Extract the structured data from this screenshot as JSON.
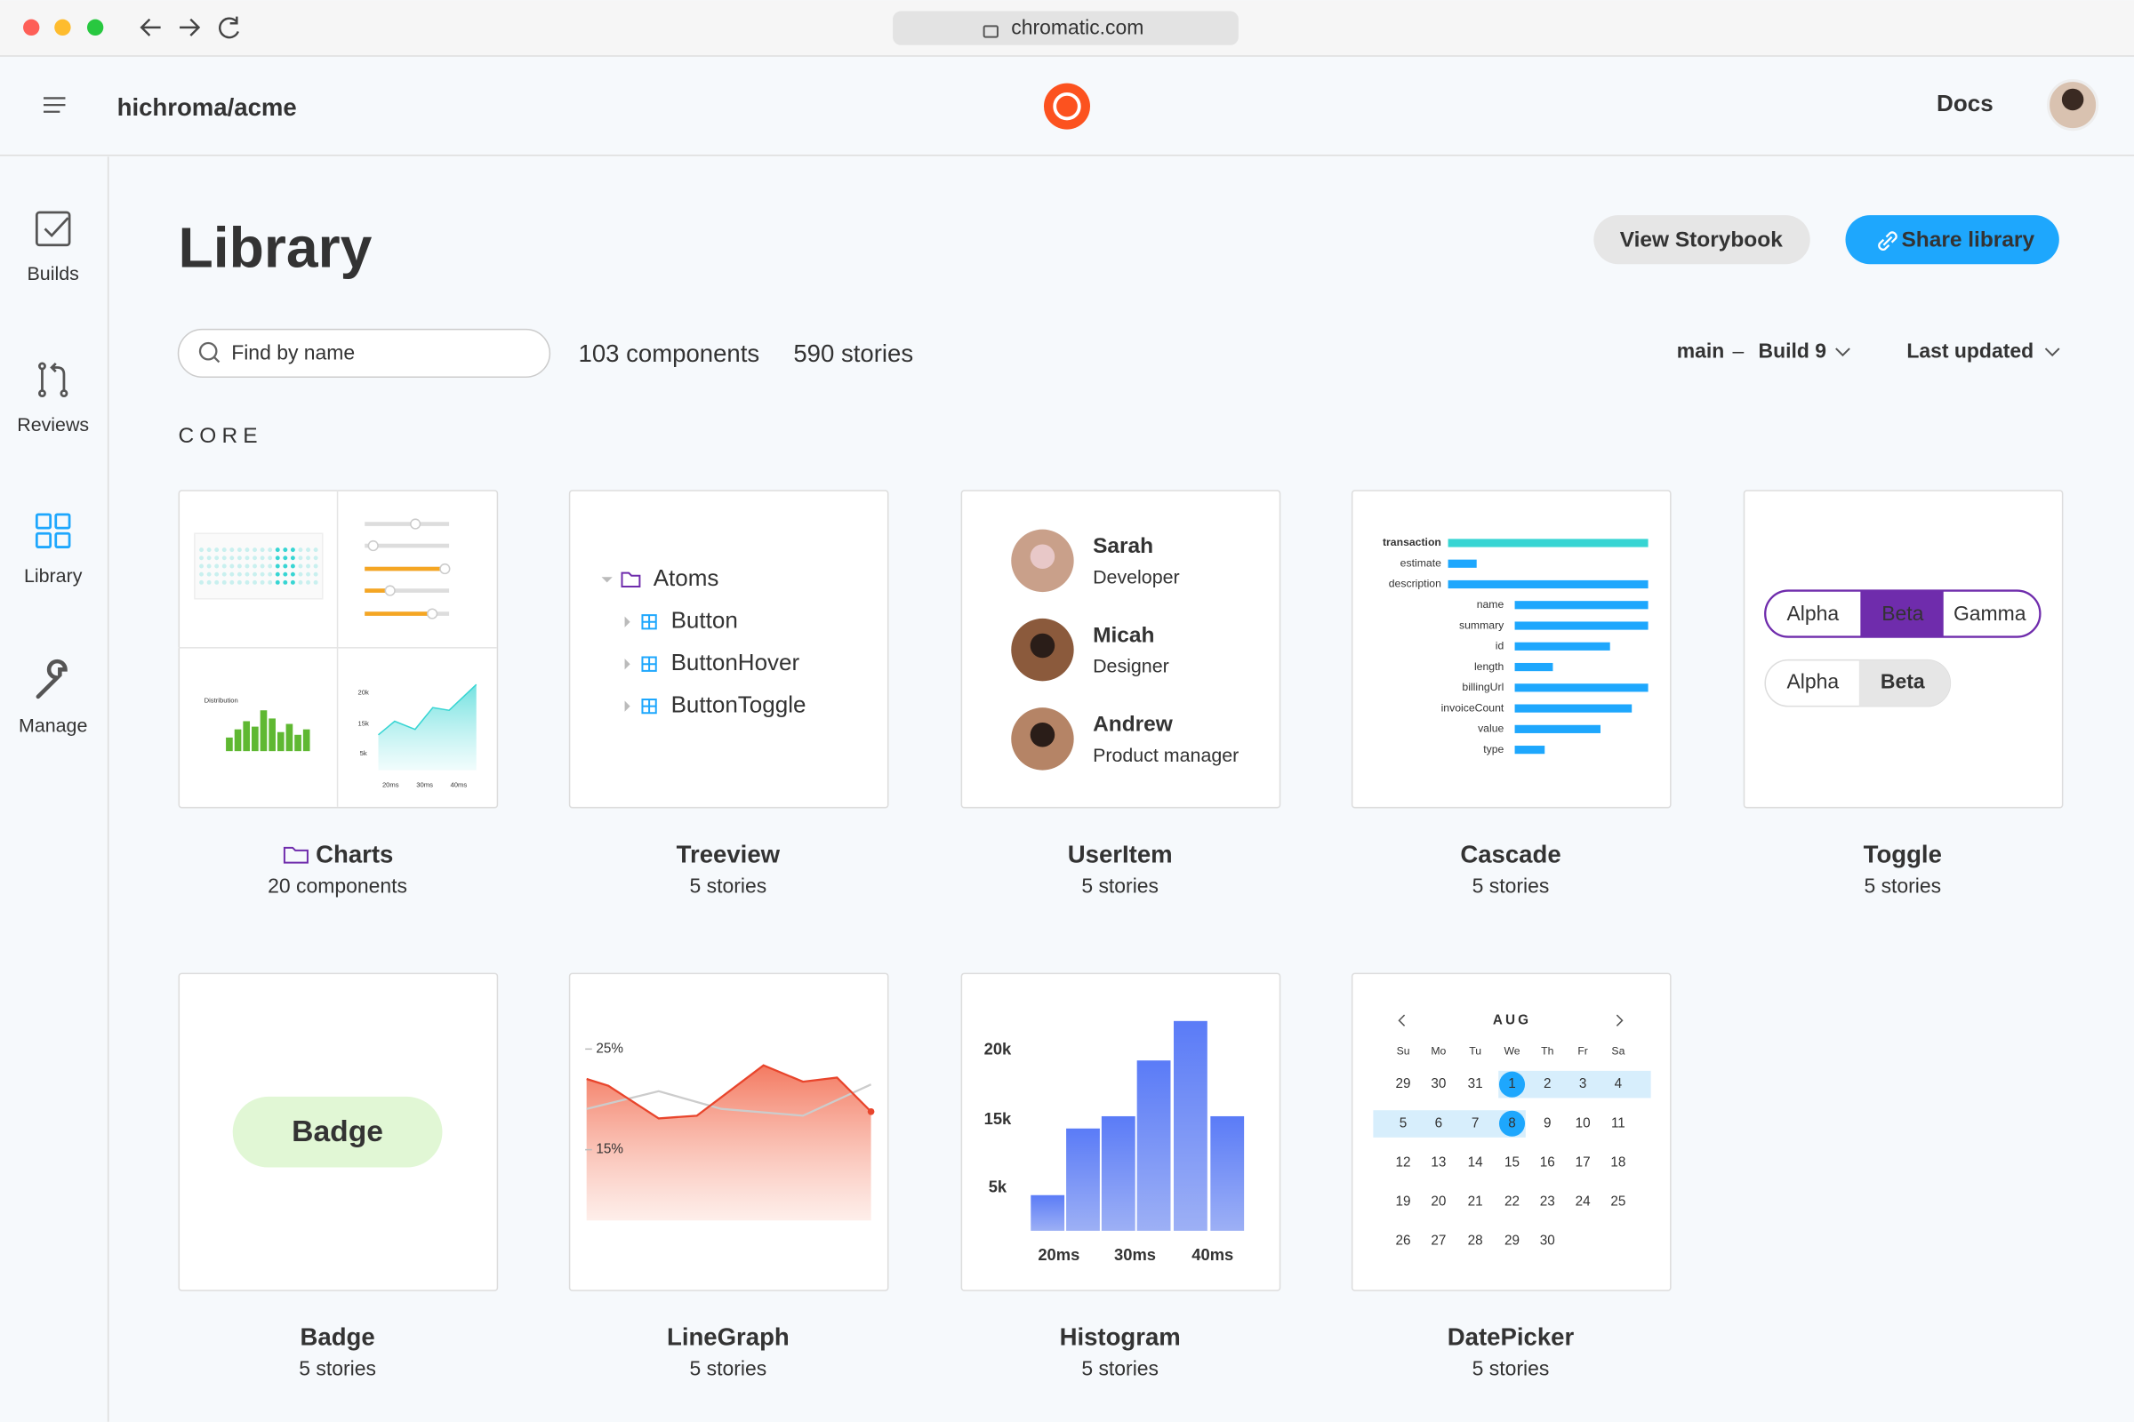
{
  "browser": {
    "url": "chromatic.com"
  },
  "header": {
    "project": "hichroma/acme",
    "docs": "Docs"
  },
  "sidebar": [
    {
      "label": "Builds",
      "active": false
    },
    {
      "label": "Reviews",
      "active": false
    },
    {
      "label": "Library",
      "active": true
    },
    {
      "label": "Manage",
      "active": false
    }
  ],
  "page": {
    "title": "Library",
    "view_button": "View Storybook",
    "share_button": "Share library",
    "search_placeholder": "Find by name",
    "component_count": "103 components",
    "story_count": "590 stories",
    "branch": "main",
    "separator": "–",
    "build": "Build 9",
    "sort": "Last updated",
    "section": "CORE"
  },
  "cards": [
    {
      "name": "Charts",
      "meta": "20 components",
      "content": {
        "title": "Distribution",
        "yticks": [
          "20k",
          "15k",
          "5k"
        ],
        "xticks": [
          "20ms",
          "30ms",
          "40ms"
        ]
      }
    },
    {
      "name": "Treeview",
      "meta": "5 stories",
      "content": [
        "Atoms",
        "Button",
        "ButtonHover",
        "ButtonToggle"
      ]
    },
    {
      "name": "UserItem",
      "meta": "5 stories",
      "content": [
        {
          "name": "Sarah",
          "role": "Developer"
        },
        {
          "name": "Micah",
          "role": "Designer"
        },
        {
          "name": "Andrew",
          "role": "Product manager"
        }
      ]
    },
    {
      "name": "Cascade",
      "meta": "5 stories",
      "content": [
        "transaction",
        "estimate",
        "description",
        "name",
        "summary",
        "id",
        "length",
        "billingUrl",
        "invoiceCount",
        "value",
        "type"
      ]
    },
    {
      "name": "Toggle",
      "meta": "5 stories",
      "content": [
        [
          "Alpha",
          "Beta",
          "Gamma"
        ],
        [
          "Alpha",
          "Beta"
        ]
      ]
    },
    {
      "name": "Badge",
      "meta": "5 stories",
      "content": "Badge"
    },
    {
      "name": "LineGraph",
      "meta": "5 stories",
      "content": [
        "25%",
        "15%"
      ]
    },
    {
      "name": "Histogram",
      "meta": "5 stories",
      "content": {
        "yticks": [
          "20k",
          "15k",
          "5k"
        ],
        "xticks": [
          "20ms",
          "30ms",
          "40ms"
        ]
      }
    },
    {
      "name": "DatePicker",
      "meta": "5 stories",
      "content": {
        "month": "AUG",
        "weekdays": [
          "Su",
          "Mo",
          "Tu",
          "We",
          "Th",
          "Fr",
          "Sa"
        ],
        "weeks": [
          [
            29,
            30,
            31,
            1,
            2,
            3,
            4
          ],
          [
            5,
            6,
            7,
            8,
            9,
            10,
            11
          ],
          [
            12,
            13,
            14,
            15,
            16,
            17,
            18
          ],
          [
            19,
            20,
            21,
            22,
            23,
            24,
            25
          ],
          [
            26,
            27,
            28,
            29,
            30
          ]
        ]
      }
    }
  ]
}
